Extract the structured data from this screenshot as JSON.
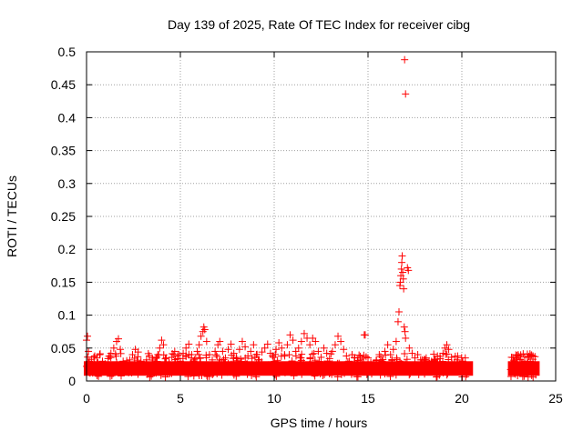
{
  "chart_data": {
    "type": "scatter",
    "title": "Day 139 of 2025, Rate Of TEC Index for receiver cibg",
    "xlabel": "GPS time / hours",
    "ylabel": "ROTI / TECUs",
    "xlim": [
      0,
      25
    ],
    "ylim": [
      0,
      0.5
    ],
    "xticks": [
      0,
      5,
      10,
      15,
      20,
      25
    ],
    "xtick_labels": [
      "0",
      "5",
      "10",
      "15",
      "20",
      "25"
    ],
    "yticks": [
      0,
      0.05,
      0.1,
      0.15,
      0.2,
      0.25,
      0.3,
      0.35,
      0.4,
      0.45,
      0.5
    ],
    "ytick_labels": [
      "0",
      "0.05",
      "0.1",
      "0.15",
      "0.2",
      "0.25",
      "0.3",
      "0.35",
      "0.4",
      "0.45",
      "0.5"
    ],
    "grid": true,
    "marker": "plus",
    "color": "#ff0000",
    "series": [
      {
        "name": "ROTI",
        "points": [
          [
            0.0,
            0.062
          ],
          [
            0.05,
            0.068
          ],
          [
            0.1,
            0.045
          ],
          [
            0.15,
            0.03
          ],
          [
            0.25,
            0.022
          ],
          [
            0.4,
            0.028
          ],
          [
            0.55,
            0.035
          ],
          [
            0.7,
            0.04
          ],
          [
            0.85,
            0.03
          ],
          [
            1.0,
            0.026
          ],
          [
            1.15,
            0.034
          ],
          [
            1.3,
            0.042
          ],
          [
            1.45,
            0.05
          ],
          [
            1.6,
            0.06
          ],
          [
            1.7,
            0.064
          ],
          [
            1.8,
            0.048
          ],
          [
            1.95,
            0.03
          ],
          [
            2.1,
            0.024
          ],
          [
            2.3,
            0.032
          ],
          [
            2.45,
            0.04
          ],
          [
            2.6,
            0.048
          ],
          [
            2.75,
            0.044
          ],
          [
            2.9,
            0.03
          ],
          [
            3.05,
            0.025
          ],
          [
            3.2,
            0.032
          ],
          [
            3.35,
            0.038
          ],
          [
            3.5,
            0.035
          ],
          [
            3.65,
            0.028
          ],
          [
            3.8,
            0.04
          ],
          [
            3.9,
            0.05
          ],
          [
            4.0,
            0.062
          ],
          [
            4.1,
            0.055
          ],
          [
            4.25,
            0.035
          ],
          [
            4.4,
            0.028
          ],
          [
            4.55,
            0.036
          ],
          [
            4.7,
            0.045
          ],
          [
            4.85,
            0.038
          ],
          [
            5.0,
            0.03
          ],
          [
            5.15,
            0.042
          ],
          [
            5.3,
            0.05
          ],
          [
            5.45,
            0.056
          ],
          [
            5.6,
            0.04
          ],
          [
            5.75,
            0.032
          ],
          [
            5.9,
            0.045
          ],
          [
            6.0,
            0.055
          ],
          [
            6.1,
            0.068
          ],
          [
            6.2,
            0.075
          ],
          [
            6.25,
            0.082
          ],
          [
            6.3,
            0.078
          ],
          [
            6.4,
            0.06
          ],
          [
            6.55,
            0.04
          ],
          [
            6.7,
            0.032
          ],
          [
            6.85,
            0.045
          ],
          [
            7.0,
            0.055
          ],
          [
            7.1,
            0.06
          ],
          [
            7.25,
            0.045
          ],
          [
            7.4,
            0.035
          ],
          [
            7.55,
            0.048
          ],
          [
            7.7,
            0.056
          ],
          [
            7.85,
            0.042
          ],
          [
            8.0,
            0.034
          ],
          [
            8.15,
            0.048
          ],
          [
            8.3,
            0.06
          ],
          [
            8.45,
            0.052
          ],
          [
            8.6,
            0.038
          ],
          [
            8.75,
            0.045
          ],
          [
            8.9,
            0.055
          ],
          [
            9.05,
            0.04
          ],
          [
            9.2,
            0.032
          ],
          [
            9.35,
            0.044
          ],
          [
            9.5,
            0.05
          ],
          [
            9.65,
            0.056
          ],
          [
            9.8,
            0.042
          ],
          [
            9.95,
            0.036
          ],
          [
            10.1,
            0.048
          ],
          [
            10.25,
            0.058
          ],
          [
            10.4,
            0.05
          ],
          [
            10.55,
            0.04
          ],
          [
            10.7,
            0.055
          ],
          [
            10.85,
            0.07
          ],
          [
            11.0,
            0.062
          ],
          [
            11.15,
            0.045
          ],
          [
            11.3,
            0.05
          ],
          [
            11.45,
            0.06
          ],
          [
            11.6,
            0.072
          ],
          [
            11.75,
            0.065
          ],
          [
            11.9,
            0.055
          ],
          [
            12.05,
            0.065
          ],
          [
            12.2,
            0.06
          ],
          [
            12.35,
            0.045
          ],
          [
            12.5,
            0.036
          ],
          [
            12.65,
            0.05
          ],
          [
            12.8,
            0.042
          ],
          [
            12.95,
            0.034
          ],
          [
            13.1,
            0.045
          ],
          [
            13.25,
            0.055
          ],
          [
            13.4,
            0.068
          ],
          [
            13.55,
            0.06
          ],
          [
            13.7,
            0.048
          ],
          [
            13.85,
            0.038
          ],
          [
            14.0,
            0.03
          ],
          [
            14.15,
            0.04
          ],
          [
            14.3,
            0.035
          ],
          [
            14.45,
            0.028
          ],
          [
            14.6,
            0.032
          ],
          [
            14.8,
            0.07
          ],
          [
            14.85,
            0.07
          ],
          [
            15.0,
            0.035
          ],
          [
            15.15,
            0.028
          ],
          [
            15.3,
            0.025
          ],
          [
            15.45,
            0.032
          ],
          [
            15.6,
            0.04
          ],
          [
            15.75,
            0.03
          ],
          [
            15.9,
            0.045
          ],
          [
            16.05,
            0.055
          ],
          [
            16.2,
            0.04
          ],
          [
            16.35,
            0.048
          ],
          [
            16.5,
            0.06
          ],
          [
            16.6,
            0.09
          ],
          [
            16.65,
            0.105
          ],
          [
            16.7,
            0.145
          ],
          [
            16.72,
            0.15
          ],
          [
            16.75,
            0.16
          ],
          [
            16.78,
            0.17
          ],
          [
            16.8,
            0.18
          ],
          [
            16.82,
            0.19
          ],
          [
            16.85,
            0.165
          ],
          [
            16.88,
            0.155
          ],
          [
            16.9,
            0.14
          ],
          [
            16.93,
            0.082
          ],
          [
            16.97,
            0.075
          ],
          [
            17.0,
            0.065
          ],
          [
            17.1,
            0.172
          ],
          [
            17.15,
            0.168
          ],
          [
            16.95,
            0.488
          ],
          [
            17.0,
            0.436
          ],
          [
            17.2,
            0.05
          ],
          [
            17.35,
            0.042
          ],
          [
            17.5,
            0.035
          ],
          [
            17.65,
            0.04
          ],
          [
            17.8,
            0.032
          ],
          [
            17.95,
            0.028
          ],
          [
            18.1,
            0.035
          ],
          [
            18.25,
            0.03
          ],
          [
            18.4,
            0.025
          ],
          [
            18.55,
            0.032
          ],
          [
            18.7,
            0.038
          ],
          [
            18.85,
            0.034
          ],
          [
            19.0,
            0.042
          ],
          [
            19.1,
            0.05
          ],
          [
            19.2,
            0.055
          ],
          [
            19.3,
            0.048
          ],
          [
            19.45,
            0.036
          ],
          [
            19.6,
            0.028
          ],
          [
            19.75,
            0.032
          ],
          [
            19.9,
            0.026
          ],
          [
            20.05,
            0.03
          ],
          [
            20.2,
            0.024
          ],
          [
            20.35,
            0.02
          ],
          [
            22.7,
            0.025
          ],
          [
            22.8,
            0.03
          ],
          [
            22.9,
            0.035
          ],
          [
            23.0,
            0.04
          ],
          [
            23.1,
            0.033
          ],
          [
            23.2,
            0.028
          ],
          [
            23.35,
            0.03
          ],
          [
            23.5,
            0.027
          ],
          [
            23.65,
            0.03
          ],
          [
            23.8,
            0.025
          ],
          [
            23.9,
            0.028
          ]
        ]
      }
    ]
  }
}
